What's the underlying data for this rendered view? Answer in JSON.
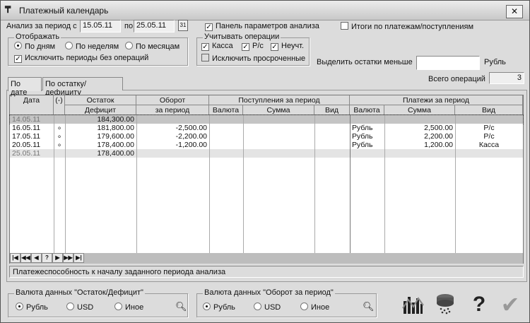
{
  "window": {
    "title": "Платежный календарь",
    "close": "✕"
  },
  "period": {
    "label": "Анализ за период с",
    "from": "15.05.11",
    "to_label": "по",
    "to": "25.05.11"
  },
  "options": {
    "panel": "Панель параметров анализа",
    "panel_checked": true,
    "totals": "Итоги по платежам/поступлениям",
    "totals_checked": false
  },
  "display": {
    "legend": "Отображать",
    "radios": [
      "По дням",
      "По неделям",
      "По месяцам"
    ],
    "selected": 0,
    "exclude": "Исключить периоды без операций",
    "exclude_checked": true
  },
  "ops": {
    "legend": "Учитывать операции",
    "items": [
      "Касса",
      "Р/с",
      "Неучт."
    ],
    "exclude_overdue": "Исключить просроченные"
  },
  "highlight": {
    "label": "Выделить остатки меньше",
    "value": "",
    "unit": "Рубль"
  },
  "total_ops": {
    "label": "Всего операций",
    "value": "3"
  },
  "tabs": [
    "По дате",
    "По остатку/дефициту"
  ],
  "grid": {
    "headers": {
      "date": "Дата",
      "minus": "(-)",
      "rest": "Остаток",
      "deficit": "Дефицит",
      "turnover": "Оборот",
      "turnover2": "за период",
      "income": "Поступления за период",
      "payments": "Платежи за период",
      "currency": "Валюта",
      "sum": "Сумма",
      "kind": "Вид"
    },
    "rows": [
      {
        "date": "14.05.11",
        "mark": "",
        "rest": "184,300.00",
        "turn": "",
        "pcur": "",
        "psum": "",
        "pkind": ""
      },
      {
        "date": "16.05.11",
        "mark": "∘",
        "rest": "181,800.00",
        "turn": "-2,500.00",
        "pcur": "Рубль",
        "psum": "2,500.00",
        "pkind": "Р/с"
      },
      {
        "date": "17.05.11",
        "mark": "∘",
        "rest": "179,600.00",
        "turn": "-2,200.00",
        "pcur": "Рубль",
        "psum": "2,200.00",
        "pkind": "Р/с"
      },
      {
        "date": "20.05.11",
        "mark": "∘",
        "rest": "178,400.00",
        "turn": "-1,200.00",
        "pcur": "Рубль",
        "psum": "1,200.00",
        "pkind": "Касса"
      },
      {
        "date": "25.05.11",
        "mark": "",
        "rest": "178,400.00",
        "turn": "",
        "pcur": "",
        "psum": "",
        "pkind": ""
      }
    ]
  },
  "nav": [
    "|◀",
    "◀◀",
    "◀",
    "?",
    "▶",
    "▶▶",
    "▶|"
  ],
  "status": "Платежеспособность к началу заданного периода анализа",
  "cur1": {
    "legend": "Валюта данных \"Остаток/Дефицит\"",
    "radios": [
      "Рубль",
      "USD",
      "Иное"
    ]
  },
  "cur2": {
    "legend": "Валюта данных \"Оборот за период\"",
    "radios": [
      "Рубль",
      "USD",
      "Иное"
    ]
  },
  "toolbar": {
    "help": "?",
    "ok": "✔"
  }
}
